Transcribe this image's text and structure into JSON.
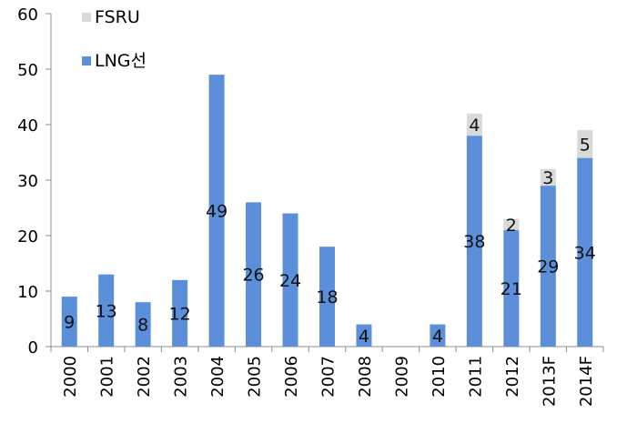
{
  "chart_data": {
    "type": "bar",
    "stacked": true,
    "categories": [
      "2000",
      "2001",
      "2002",
      "2003",
      "2004",
      "2005",
      "2006",
      "2007",
      "2008",
      "2009",
      "2010",
      "2011",
      "2012",
      "2013F",
      "2014F"
    ],
    "series": [
      {
        "name": "LNG선",
        "color": "#5b8fd9",
        "values": [
          9,
          13,
          8,
          12,
          49,
          26,
          24,
          18,
          4,
          0,
          4,
          38,
          21,
          29,
          34
        ]
      },
      {
        "name": "FSRU",
        "color": "#d9d9d9",
        "values": [
          0,
          0,
          0,
          0,
          0,
          0,
          0,
          0,
          0,
          0,
          0,
          4,
          2,
          3,
          5
        ]
      }
    ],
    "data_labels": {
      "LNG선": [
        "9",
        "13",
        "8",
        "12",
        "49",
        "26",
        "24",
        "18",
        "4",
        "",
        "4",
        "38",
        "21",
        "29",
        "34"
      ],
      "FSRU": [
        "",
        "",
        "",
        "",
        "",
        "",
        "",
        "",
        "",
        "",
        "",
        "4",
        "2",
        "3",
        "5"
      ]
    },
    "ylim": [
      0,
      60
    ],
    "yticks": [
      0,
      10,
      20,
      30,
      40,
      50,
      60
    ],
    "grid": false,
    "legend": {
      "placement": "top-left",
      "order": [
        "FSRU",
        "LNG선"
      ]
    }
  }
}
